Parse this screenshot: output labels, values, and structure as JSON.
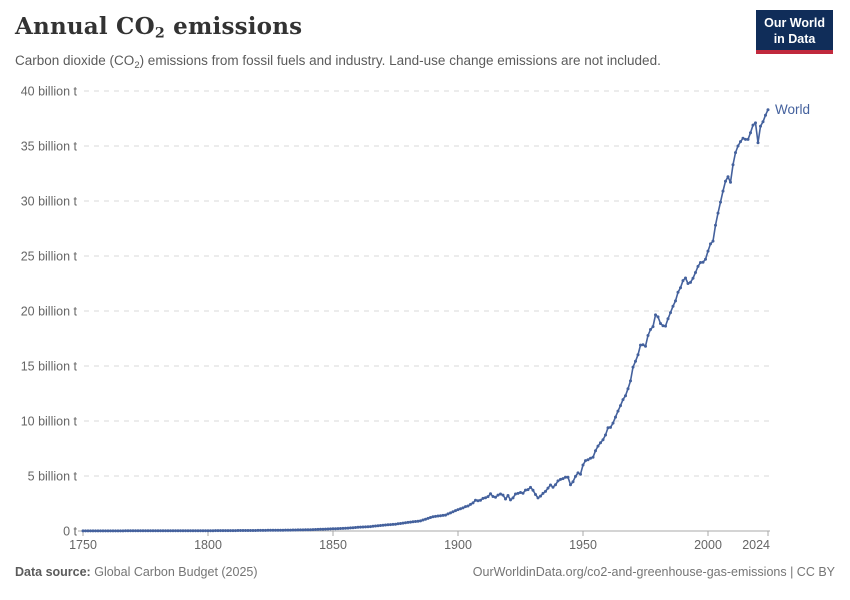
{
  "header": {
    "title_prefix": "Annual CO",
    "title_sub": "2",
    "title_suffix": " emissions",
    "subtitle_prefix": "Carbon dioxide (CO",
    "subtitle_sub": "2",
    "subtitle_suffix": ") emissions from fossil fuels and industry. Land-use change emissions are not included."
  },
  "logo": {
    "line1": "Our World",
    "line2": "in Data"
  },
  "colors": {
    "line": "#44619d",
    "logo_bg": "#102d59",
    "logo_accent": "#c0293d",
    "grid": "#dadada",
    "axis": "#a8a8a8",
    "tick_text": "#666666",
    "title_text": "#333333",
    "subtitle_text": "#5b5b5b"
  },
  "chart_data": {
    "type": "line",
    "title": "Annual CO₂ emissions",
    "unit": "billion t",
    "xlim": [
      1750,
      2024
    ],
    "ylim": [
      0,
      40
    ],
    "grid": "horizontal-dashed",
    "legend_position": "end-of-line-label",
    "x_ticks": [
      1750,
      1800,
      1850,
      1900,
      1950,
      2000,
      2024
    ],
    "y_ticks": [
      {
        "value": 0,
        "label": "0 t"
      },
      {
        "value": 5,
        "label": "5 billion t"
      },
      {
        "value": 10,
        "label": "10 billion t"
      },
      {
        "value": 15,
        "label": "15 billion t"
      },
      {
        "value": 20,
        "label": "20 billion t"
      },
      {
        "value": 25,
        "label": "25 billion t"
      },
      {
        "value": 30,
        "label": "30 billion t"
      },
      {
        "value": 35,
        "label": "35 billion t"
      },
      {
        "value": 40,
        "label": "40 billion t"
      }
    ],
    "series": [
      {
        "name": "World",
        "color": "#44619d",
        "points": [
          [
            1750,
            0.009
          ],
          [
            1760,
            0.011
          ],
          [
            1770,
            0.015
          ],
          [
            1780,
            0.019
          ],
          [
            1790,
            0.025
          ],
          [
            1800,
            0.03
          ],
          [
            1810,
            0.039
          ],
          [
            1820,
            0.051
          ],
          [
            1830,
            0.076
          ],
          [
            1840,
            0.11
          ],
          [
            1850,
            0.197
          ],
          [
            1855,
            0.25
          ],
          [
            1860,
            0.34
          ],
          [
            1865,
            0.4
          ],
          [
            1870,
            0.53
          ],
          [
            1875,
            0.62
          ],
          [
            1880,
            0.78
          ],
          [
            1885,
            0.92
          ],
          [
            1890,
            1.3
          ],
          [
            1895,
            1.45
          ],
          [
            1900,
            1.95
          ],
          [
            1901,
            2.02
          ],
          [
            1902,
            2.1
          ],
          [
            1903,
            2.22
          ],
          [
            1904,
            2.27
          ],
          [
            1905,
            2.42
          ],
          [
            1906,
            2.55
          ],
          [
            1907,
            2.8
          ],
          [
            1908,
            2.75
          ],
          [
            1909,
            2.8
          ],
          [
            1910,
            2.96
          ],
          [
            1911,
            3.02
          ],
          [
            1912,
            3.13
          ],
          [
            1913,
            3.38
          ],
          [
            1914,
            3.14
          ],
          [
            1915,
            3.06
          ],
          [
            1916,
            3.26
          ],
          [
            1917,
            3.36
          ],
          [
            1918,
            3.26
          ],
          [
            1919,
            2.91
          ],
          [
            1920,
            3.23
          ],
          [
            1921,
            2.83
          ],
          [
            1922,
            3.01
          ],
          [
            1923,
            3.36
          ],
          [
            1924,
            3.42
          ],
          [
            1925,
            3.5
          ],
          [
            1926,
            3.43
          ],
          [
            1927,
            3.72
          ],
          [
            1928,
            3.76
          ],
          [
            1929,
            3.96
          ],
          [
            1930,
            3.71
          ],
          [
            1931,
            3.32
          ],
          [
            1932,
            3.01
          ],
          [
            1933,
            3.17
          ],
          [
            1934,
            3.42
          ],
          [
            1935,
            3.6
          ],
          [
            1936,
            3.9
          ],
          [
            1937,
            4.18
          ],
          [
            1938,
            3.98
          ],
          [
            1939,
            4.2
          ],
          [
            1940,
            4.55
          ],
          [
            1941,
            4.69
          ],
          [
            1942,
            4.76
          ],
          [
            1943,
            4.88
          ],
          [
            1944,
            4.89
          ],
          [
            1945,
            4.2
          ],
          [
            1946,
            4.48
          ],
          [
            1947,
            4.96
          ],
          [
            1948,
            5.28
          ],
          [
            1949,
            5.16
          ],
          [
            1950,
            6.0
          ],
          [
            1951,
            6.4
          ],
          [
            1952,
            6.48
          ],
          [
            1953,
            6.62
          ],
          [
            1954,
            6.7
          ],
          [
            1955,
            7.3
          ],
          [
            1956,
            7.72
          ],
          [
            1957,
            8.02
          ],
          [
            1958,
            8.3
          ],
          [
            1959,
            8.73
          ],
          [
            1960,
            9.39
          ],
          [
            1961,
            9.42
          ],
          [
            1962,
            9.81
          ],
          [
            1963,
            10.35
          ],
          [
            1964,
            10.9
          ],
          [
            1965,
            11.4
          ],
          [
            1966,
            11.95
          ],
          [
            1967,
            12.3
          ],
          [
            1968,
            12.94
          ],
          [
            1969,
            13.65
          ],
          [
            1970,
            14.9
          ],
          [
            1971,
            15.43
          ],
          [
            1972,
            16.02
          ],
          [
            1973,
            16.9
          ],
          [
            1974,
            16.94
          ],
          [
            1975,
            16.8
          ],
          [
            1976,
            17.77
          ],
          [
            1977,
            18.32
          ],
          [
            1978,
            18.58
          ],
          [
            1979,
            19.65
          ],
          [
            1980,
            19.46
          ],
          [
            1981,
            18.86
          ],
          [
            1982,
            18.66
          ],
          [
            1983,
            18.63
          ],
          [
            1984,
            19.29
          ],
          [
            1985,
            19.85
          ],
          [
            1986,
            20.44
          ],
          [
            1987,
            20.92
          ],
          [
            1988,
            21.7
          ],
          [
            1989,
            22.12
          ],
          [
            1990,
            22.76
          ],
          [
            1991,
            23.0
          ],
          [
            1992,
            22.5
          ],
          [
            1993,
            22.6
          ],
          [
            1994,
            22.98
          ],
          [
            1995,
            23.5
          ],
          [
            1996,
            24.05
          ],
          [
            1997,
            24.41
          ],
          [
            1998,
            24.43
          ],
          [
            1999,
            24.7
          ],
          [
            2000,
            25.45
          ],
          [
            2001,
            26.1
          ],
          [
            2002,
            26.35
          ],
          [
            2003,
            27.8
          ],
          [
            2004,
            28.9
          ],
          [
            2005,
            29.9
          ],
          [
            2006,
            30.9
          ],
          [
            2007,
            31.8
          ],
          [
            2008,
            32.2
          ],
          [
            2009,
            31.7
          ],
          [
            2010,
            33.3
          ],
          [
            2011,
            34.4
          ],
          [
            2012,
            35.0
          ],
          [
            2013,
            35.4
          ],
          [
            2014,
            35.7
          ],
          [
            2015,
            35.6
          ],
          [
            2016,
            35.6
          ],
          [
            2017,
            36.2
          ],
          [
            2018,
            36.9
          ],
          [
            2019,
            37.1
          ],
          [
            2020,
            35.3
          ],
          [
            2021,
            36.8
          ],
          [
            2022,
            37.2
          ],
          [
            2023,
            37.8
          ],
          [
            2024,
            38.3
          ]
        ]
      }
    ]
  },
  "footer": {
    "source_label": "Data source:",
    "source_text": "Global Carbon Budget (2025)",
    "right_text": "OurWorldinData.org/co2-and-greenhouse-gas-emissions | CC BY"
  }
}
